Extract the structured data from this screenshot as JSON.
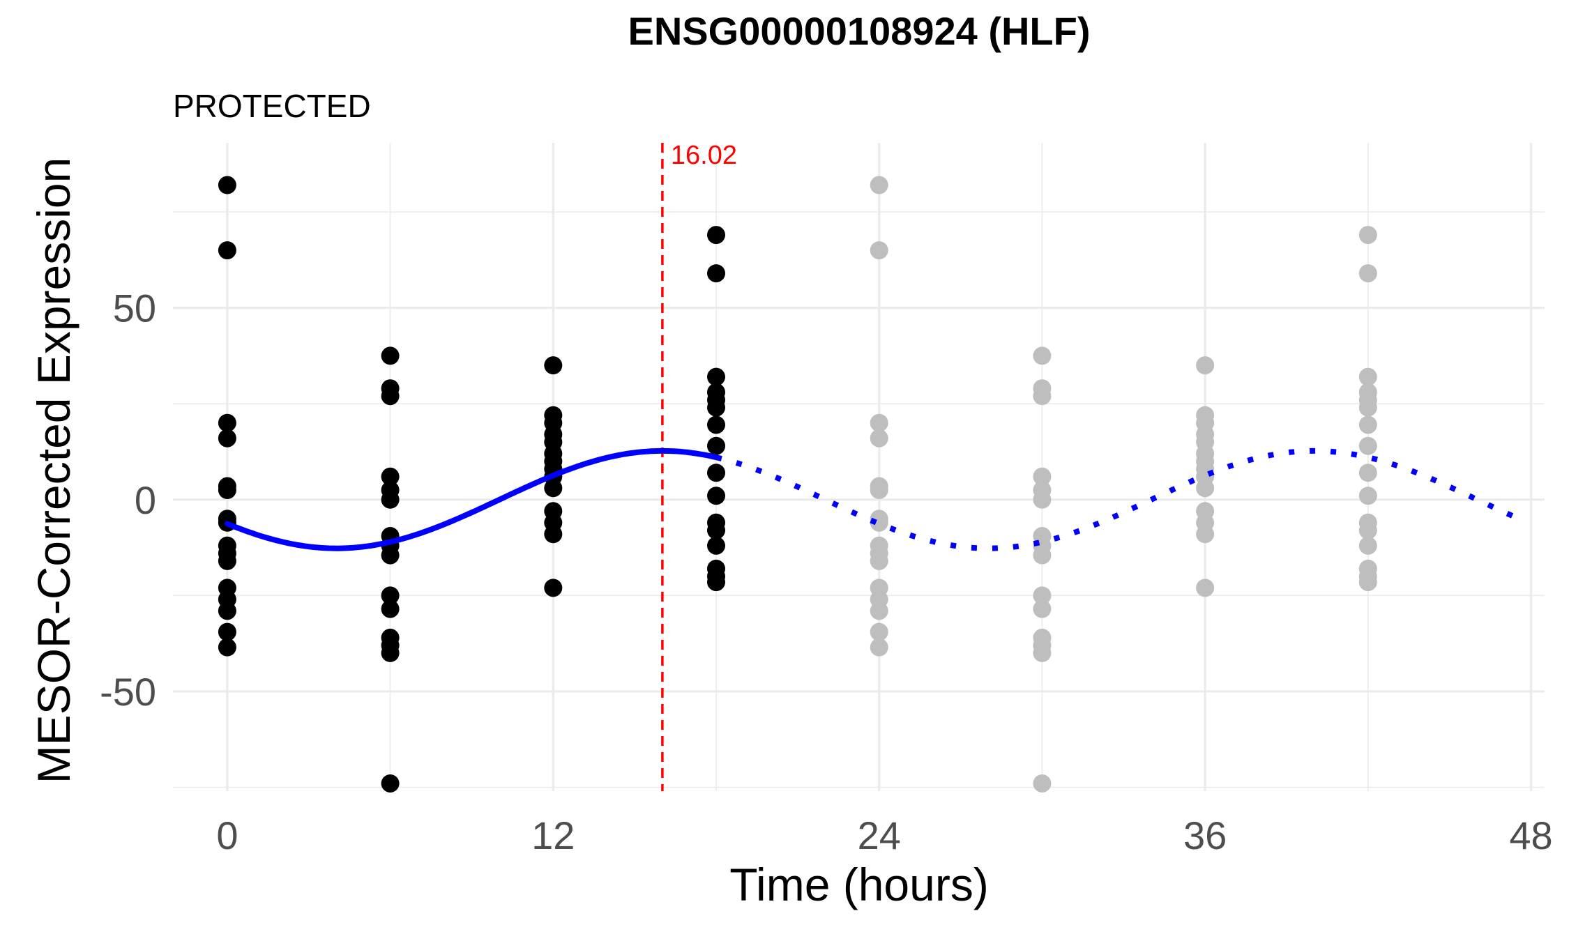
{
  "chart_data": {
    "type": "scatter",
    "title": "ENSG00000108924 (HLF)",
    "subtitle": "PROTECTED",
    "xlabel": "Time (hours)",
    "ylabel": "MESOR-Corrected Expression",
    "xlim": [
      -2,
      48.5
    ],
    "ylim": [
      -76,
      93
    ],
    "x_ticks": [
      0,
      12,
      24,
      36,
      48
    ],
    "x_tick_labels": [
      "0",
      "12",
      "24",
      "36",
      "48"
    ],
    "x_minor": [
      6,
      18,
      30,
      42
    ],
    "y_ticks": [
      -50,
      0,
      50
    ],
    "y_tick_labels": [
      "-50",
      "0",
      "50"
    ],
    "y_minor": [
      -75,
      -25,
      25,
      75
    ],
    "grid": true,
    "colors": {
      "observed": "#000000",
      "projected": "#bebebe",
      "fit": "#0000ff",
      "peak_line": "#ff0000",
      "grid": "#ebebeb",
      "tick_text": "#4d4d4d"
    },
    "peak": {
      "x": 16.02,
      "label": "16.02"
    },
    "fit": {
      "mesor": 0,
      "amplitude": 12.7,
      "acrophase_h": 16.02,
      "period_h": 24,
      "observed_range": [
        0,
        18
      ],
      "projected_range": [
        18,
        47.5
      ]
    },
    "observed_points": [
      {
        "x": 0,
        "ys": [
          82,
          65,
          20,
          16,
          3.5,
          2.5,
          -5,
          -6,
          -12,
          -14,
          -16,
          -23,
          -26,
          -29,
          -34.5,
          -38.5
        ]
      },
      {
        "x": 6,
        "ys": [
          37.5,
          29,
          27,
          6,
          2.5,
          0,
          -9.5,
          -12,
          -14.5,
          -25,
          -28.5,
          -36,
          -38,
          -40,
          -74
        ]
      },
      {
        "x": 12,
        "ys": [
          35,
          22,
          20,
          17,
          15,
          12,
          10,
          8,
          6,
          3,
          -3,
          -6,
          -9,
          -23
        ]
      },
      {
        "x": 18,
        "ys": [
          69,
          59,
          32,
          28,
          26,
          24,
          19.5,
          14,
          7,
          1,
          -6,
          -8,
          -12,
          -18,
          -20,
          -21.5
        ]
      }
    ],
    "projected_points": [
      {
        "x": 24,
        "ys": [
          82,
          65,
          20,
          16,
          3.5,
          2.5,
          -5,
          -6,
          -12,
          -14,
          -16,
          -23,
          -26,
          -29,
          -34.5,
          -38.5
        ]
      },
      {
        "x": 30,
        "ys": [
          37.5,
          29,
          27,
          6,
          2.5,
          0,
          -9.5,
          -12,
          -14.5,
          -25,
          -28.5,
          -36,
          -38,
          -40,
          -74
        ]
      },
      {
        "x": 36,
        "ys": [
          35,
          22,
          20,
          17,
          15,
          12,
          10,
          8,
          6,
          3,
          -3,
          -6,
          -9,
          -23
        ]
      },
      {
        "x": 42,
        "ys": [
          69,
          59,
          32,
          28,
          26,
          24,
          19.5,
          14,
          7,
          1,
          -6,
          -8,
          -12,
          -18,
          -20,
          -21.5
        ]
      }
    ]
  }
}
